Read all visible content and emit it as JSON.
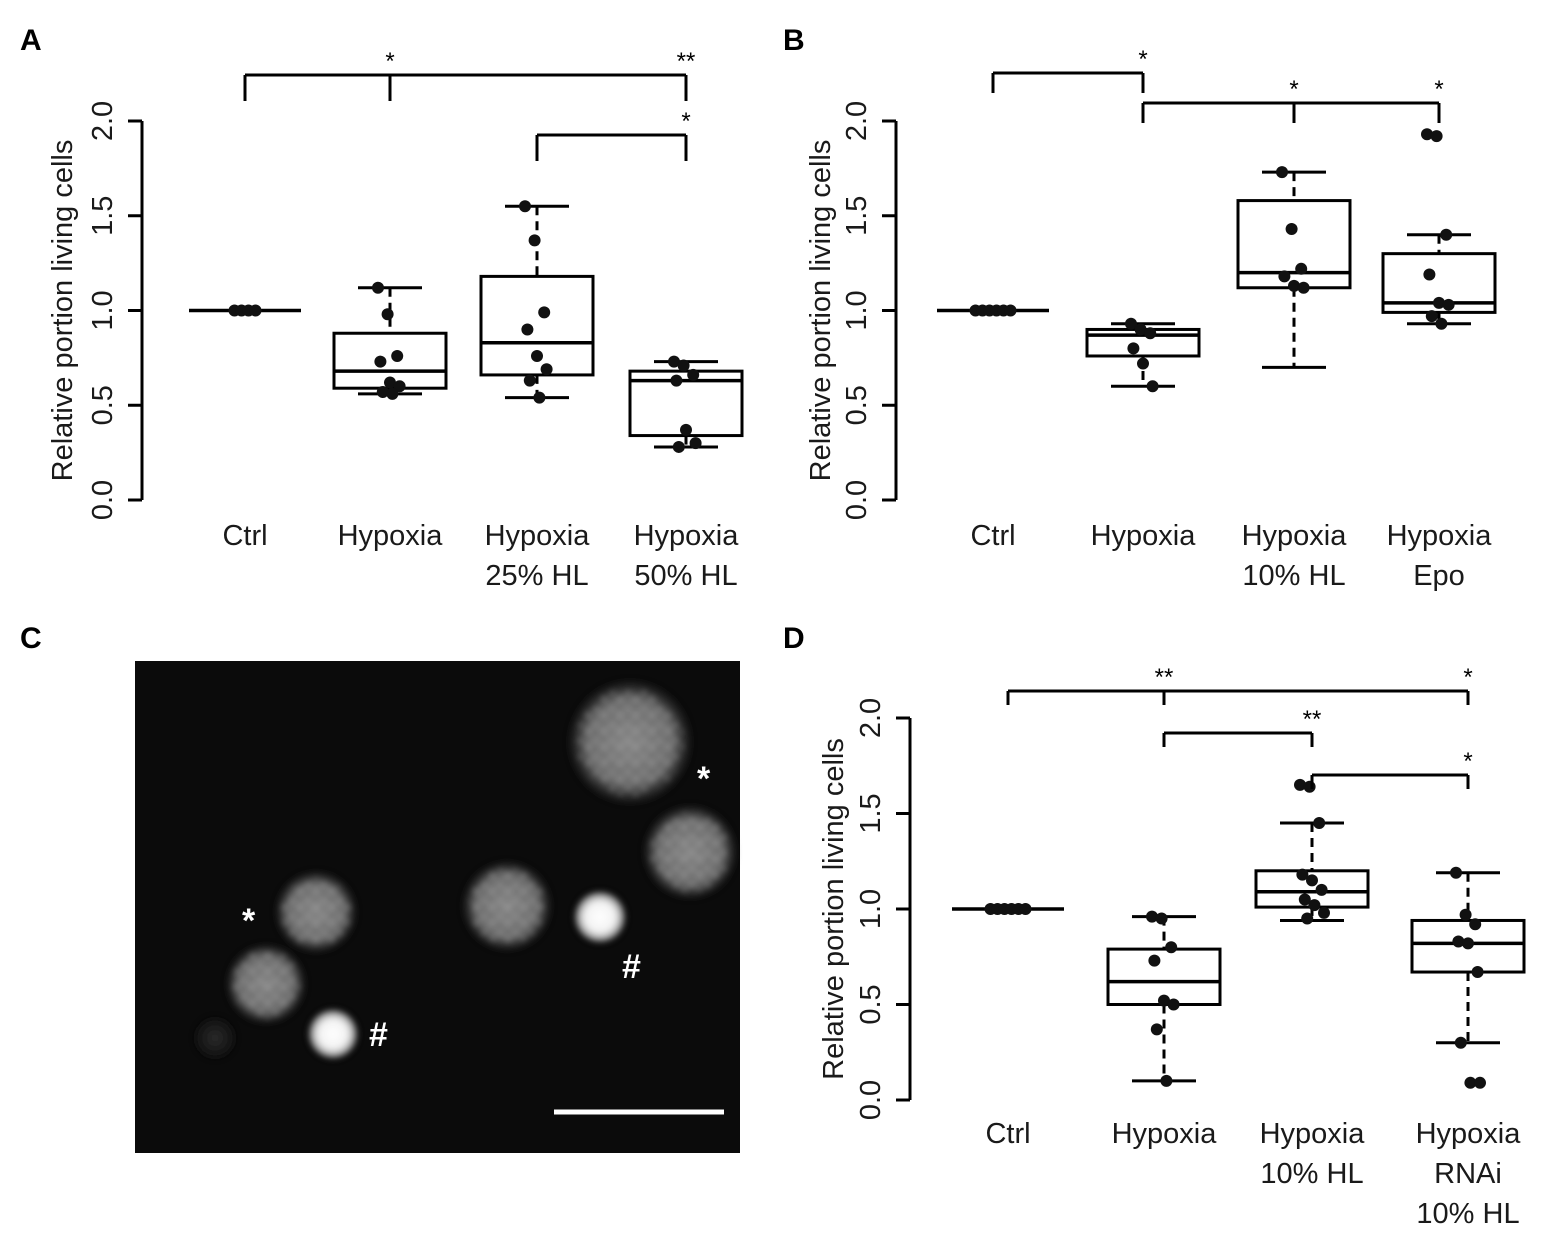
{
  "panels": {
    "A": "A",
    "B": "B",
    "C": "C",
    "D": "D"
  },
  "chart_data": [
    {
      "panel": "A",
      "type": "box",
      "ylabel": "Relative portion living cells",
      "ylim": [
        0,
        2
      ],
      "yticks": [
        "0.0",
        "0.5",
        "1.0",
        "1.5",
        "2.0"
      ],
      "categories": [
        [
          "Ctrl"
        ],
        [
          "Hypoxia"
        ],
        [
          "Hypoxia",
          "25% HL"
        ],
        [
          "Hypoxia",
          "50% HL"
        ]
      ],
      "boxes": [
        {
          "min": 1.0,
          "q1": 1.0,
          "median": 1.0,
          "q3": 1.0,
          "max": 1.0,
          "points": [
            1.0,
            1.0,
            1.0,
            1.0
          ]
        },
        {
          "min": 0.56,
          "q1": 0.59,
          "median": 0.68,
          "q3": 0.88,
          "max": 1.12,
          "points": [
            1.12,
            0.98,
            0.76,
            0.73,
            0.62,
            0.6,
            0.57,
            0.56
          ]
        },
        {
          "min": 0.54,
          "q1": 0.66,
          "median": 0.83,
          "q3": 1.18,
          "max": 1.55,
          "points": [
            1.55,
            1.37,
            0.99,
            0.9,
            0.76,
            0.69,
            0.63,
            0.54
          ]
        },
        {
          "min": 0.28,
          "q1": 0.34,
          "median": 0.63,
          "q3": 0.68,
          "max": 0.73,
          "points": [
            0.73,
            0.71,
            0.66,
            0.63,
            0.37,
            0.3,
            0.28
          ]
        }
      ],
      "significance": [
        {
          "from": 0,
          "to": [
            1,
            3
          ],
          "label": "*",
          "label2": "**",
          "level": 0
        },
        {
          "from": 2,
          "to": [
            3
          ],
          "label": "*",
          "level": 1
        }
      ]
    },
    {
      "panel": "B",
      "type": "box",
      "ylabel": "Relative portion living cells",
      "ylim": [
        0,
        2
      ],
      "yticks": [
        "0.0",
        "0.5",
        "1.0",
        "1.5",
        "2.0"
      ],
      "categories": [
        [
          "Ctrl"
        ],
        [
          "Hypoxia"
        ],
        [
          "Hypoxia",
          "10% HL"
        ],
        [
          "Hypoxia",
          "Epo"
        ]
      ],
      "boxes": [
        {
          "min": 1.0,
          "q1": 1.0,
          "median": 1.0,
          "q3": 1.0,
          "max": 1.0,
          "points": [
            1.0,
            1.0,
            1.0,
            1.0,
            1.0,
            1.0
          ]
        },
        {
          "min": 0.6,
          "q1": 0.76,
          "median": 0.87,
          "q3": 0.9,
          "max": 0.93,
          "points": [
            0.93,
            0.9,
            0.88,
            0.8,
            0.72,
            0.6
          ]
        },
        {
          "min": 0.7,
          "q1": 1.12,
          "median": 1.2,
          "q3": 1.58,
          "max": 1.73,
          "points": [
            1.73,
            1.43,
            1.22,
            1.18,
            1.13,
            1.12
          ]
        },
        {
          "min": 0.93,
          "q1": 0.99,
          "median": 1.04,
          "q3": 1.3,
          "max": 1.4,
          "points": [
            1.93,
            1.92,
            1.4,
            1.19,
            1.04,
            1.03,
            0.97,
            0.93
          ]
        }
      ],
      "significance": [
        {
          "from": 0,
          "to": [
            1
          ],
          "label": "*",
          "level": 0
        },
        {
          "from": 1,
          "to": [
            2,
            3
          ],
          "label": "*",
          "label2": "*",
          "level": 1
        }
      ]
    },
    {
      "panel": "D",
      "type": "box",
      "ylabel": "Relative portion living cells",
      "ylim": [
        0,
        2
      ],
      "yticks": [
        "0.0",
        "0.5",
        "1.0",
        "1.5",
        "2.0"
      ],
      "categories": [
        [
          "Ctrl"
        ],
        [
          "Hypoxia"
        ],
        [
          "Hypoxia",
          "10% HL"
        ],
        [
          "Hypoxia",
          "RNAi",
          "10% HL"
        ]
      ],
      "boxes": [
        {
          "min": 1.0,
          "q1": 1.0,
          "median": 1.0,
          "q3": 1.0,
          "max": 1.0,
          "points": [
            1.0,
            1.0,
            1.0,
            1.0,
            1.0,
            1.0
          ]
        },
        {
          "min": 0.1,
          "q1": 0.5,
          "median": 0.62,
          "q3": 0.79,
          "max": 0.96,
          "points": [
            0.96,
            0.95,
            0.8,
            0.73,
            0.52,
            0.5,
            0.37,
            0.1
          ]
        },
        {
          "min": 0.94,
          "q1": 1.01,
          "median": 1.09,
          "q3": 1.2,
          "max": 1.45,
          "points": [
            1.65,
            1.64,
            1.45,
            1.18,
            1.15,
            1.1,
            1.05,
            1.02,
            0.98,
            0.95
          ]
        },
        {
          "min": 0.3,
          "q1": 0.67,
          "median": 0.82,
          "q3": 0.94,
          "max": 1.19,
          "points": [
            1.19,
            0.97,
            0.92,
            0.83,
            0.82,
            0.67,
            0.3,
            0.09,
            0.09
          ]
        }
      ],
      "significance": [
        {
          "from": 0,
          "to": [
            1,
            3
          ],
          "label": "**",
          "label2": "*",
          "level": 0
        },
        {
          "from": 1,
          "to": [
            2
          ],
          "label": "**",
          "level": 1
        },
        {
          "from": 2,
          "to": [
            3
          ],
          "label": "*",
          "level": 2
        }
      ]
    }
  ],
  "micrograph": {
    "labels": [
      "*",
      "*",
      "#",
      "#"
    ],
    "scale_bar": true
  }
}
